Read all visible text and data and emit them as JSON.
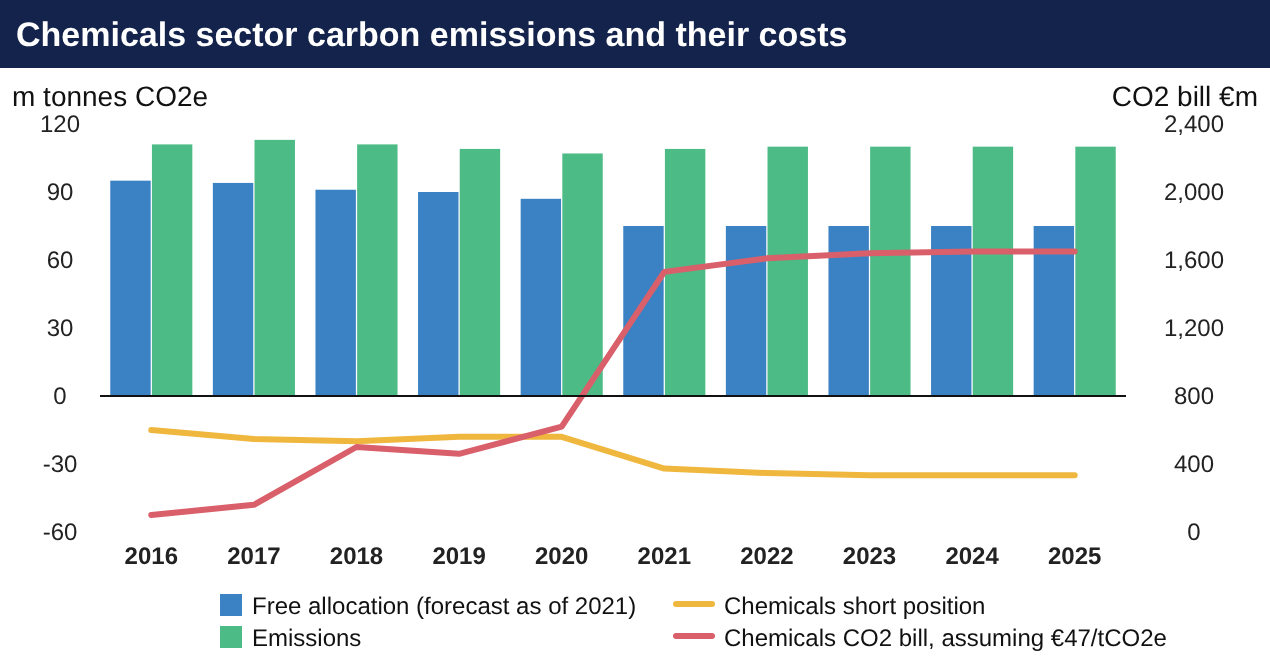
{
  "chart_data": {
    "type": "bar",
    "title": "Chemicals sector carbon emissions and their costs",
    "ylabel": "m tonnes CO2e",
    "y2label": "CO2 bill €m",
    "categories": [
      "2016",
      "2017",
      "2018",
      "2019",
      "2020",
      "2021",
      "2022",
      "2023",
      "2024",
      "2025"
    ],
    "series": [
      {
        "name": "Free allocation (forecast as of 2021)",
        "color": "#3b82c4",
        "values": [
          95,
          94,
          91,
          90,
          87,
          75,
          75,
          75,
          75,
          75
        ]
      },
      {
        "name": "Emissions",
        "color": "#4dbb86",
        "values": [
          111,
          113,
          111,
          109,
          107,
          109,
          110,
          110,
          110,
          110
        ]
      },
      {
        "name": "Chemicals short position",
        "type": "line",
        "color": "#f0b73e",
        "values": [
          -15,
          -19,
          -20,
          -18,
          -18,
          -32,
          -34,
          -35,
          -35,
          -35
        ]
      },
      {
        "name": "Chemicals CO2 bill, assuming €47/tCO2e",
        "type": "line",
        "axis": "y2",
        "color": "#d9606a",
        "values": [
          100,
          160,
          500,
          460,
          620,
          1530,
          1610,
          1640,
          1650,
          1650
        ]
      }
    ],
    "ylim": [
      -60,
      120
    ],
    "yticks": [
      -60,
      -30,
      0,
      30,
      60,
      90,
      120
    ],
    "y2lim": [
      0,
      2400
    ],
    "y2ticks": [
      {
        "value": 0,
        "label": "0"
      },
      {
        "value": 400,
        "label": "400"
      },
      {
        "value": 800,
        "label": "800"
      },
      {
        "value": 1200,
        "label": "1,200"
      },
      {
        "value": 1600,
        "label": "1,600"
      },
      {
        "value": 2000,
        "label": "2,000"
      },
      {
        "value": 2400,
        "label": "2,400"
      }
    ],
    "legend": "bottom",
    "marker": "none",
    "line_style": "solid"
  }
}
